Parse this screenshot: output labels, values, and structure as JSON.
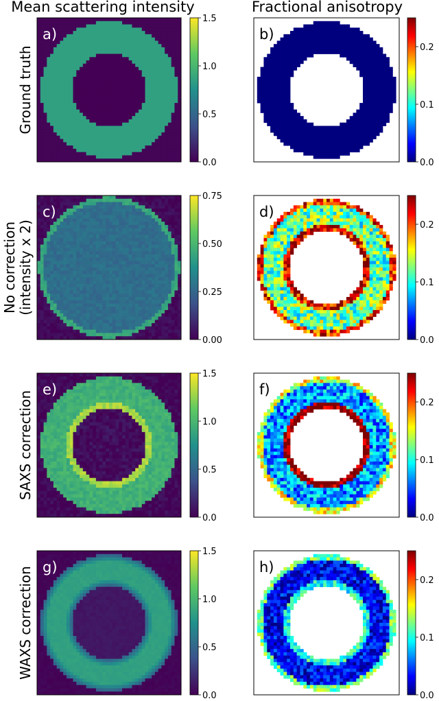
{
  "figure": {
    "column_titles": [
      "Mean scattering intensity",
      "Fractional anisotropy"
    ],
    "row_labels": [
      [
        "Ground truth"
      ],
      [
        "No correction",
        "(intensity x 2)"
      ],
      [
        "SAXS correction"
      ],
      [
        "WAXS correction"
      ]
    ],
    "panel_labels": [
      "a)",
      "b)",
      "c)",
      "d)",
      "e)",
      "f)",
      "g)",
      "h)"
    ],
    "colormaps": {
      "intensity": "viridis",
      "anisotropy": "jet"
    },
    "background_color": "#440154"
  },
  "chart_data": [
    {
      "type": "heatmap",
      "panel": "a)",
      "quantity": "Mean scattering intensity",
      "row": "Ground truth",
      "shape": "annulus",
      "ring_value": 0.85,
      "inner_value": 0.0,
      "noise": 0.0,
      "colormap": "viridis",
      "clim": [
        0,
        1.5
      ],
      "ticks": [
        "0.0",
        "0.5",
        "1.0",
        "1.5"
      ]
    },
    {
      "type": "heatmap",
      "panel": "b)",
      "quantity": "Fractional anisotropy",
      "row": "Ground truth",
      "shape": "annulus",
      "ring_value": 0.0,
      "hole": "blank",
      "noise": 0.0,
      "colormap": "jet",
      "clim": [
        0,
        0.25
      ],
      "ticks": [
        "0.0",
        "0.1",
        "0.2"
      ]
    },
    {
      "type": "heatmap",
      "panel": "c)",
      "quantity": "Mean scattering intensity",
      "row": "No correction (intensity x 2)",
      "shape": "disk",
      "disk_value": 0.27,
      "rim_value": 0.45,
      "noise": 0.03,
      "colormap": "viridis",
      "clim": [
        0,
        0.75
      ],
      "ticks": [
        "0.00",
        "0.25",
        "0.50",
        "0.75"
      ]
    },
    {
      "type": "heatmap",
      "panel": "d)",
      "quantity": "Fractional anisotropy",
      "row": "No correction (intensity x 2)",
      "shape": "annulus",
      "ring_value": 0.12,
      "inner_edge_value": 0.23,
      "outer_edge_value": 0.21,
      "hole": "blank",
      "noise": 0.05,
      "colormap": "jet",
      "clim": [
        0,
        0.25
      ],
      "ticks": [
        "0.0",
        "0.1",
        "0.2"
      ]
    },
    {
      "type": "heatmap",
      "panel": "e)",
      "quantity": "Mean scattering intensity",
      "row": "SAXS correction",
      "shape": "annulus",
      "ring_value": 0.95,
      "inner_edge_value": 1.3,
      "inner_value": 0.05,
      "noise": 0.08,
      "colormap": "viridis",
      "clim": [
        0,
        1.5
      ],
      "ticks": [
        "0.0",
        "0.5",
        "1.0",
        "1.5"
      ]
    },
    {
      "type": "heatmap",
      "panel": "f)",
      "quantity": "Fractional anisotropy",
      "row": "SAXS correction",
      "shape": "annulus",
      "ring_value": 0.07,
      "inner_edge_value": 0.25,
      "outer_edge_value": 0.15,
      "hole": "blank",
      "noise": 0.04,
      "colormap": "jet",
      "clim": [
        0,
        0.25
      ],
      "ticks": [
        "0.0",
        "0.1",
        "0.2"
      ]
    },
    {
      "type": "heatmap",
      "panel": "g)",
      "quantity": "Mean scattering intensity",
      "row": "WAXS correction",
      "shape": "annulus",
      "ring_value": 0.85,
      "inner_value": 0.1,
      "blurred": true,
      "noise": 0.02,
      "colormap": "viridis",
      "clim": [
        0,
        1.5
      ],
      "ticks": [
        "0.0",
        "0.5",
        "1.0",
        "1.5"
      ]
    },
    {
      "type": "heatmap",
      "panel": "h)",
      "quantity": "Fractional anisotropy",
      "row": "WAXS correction",
      "shape": "annulus",
      "ring_value": 0.03,
      "inner_edge_value": 0.1,
      "outer_edge_value": 0.12,
      "hole": "blank",
      "noise": 0.03,
      "colormap": "jet",
      "clim": [
        0,
        0.25
      ],
      "ticks": [
        "0.0",
        "0.1",
        "0.2"
      ]
    }
  ]
}
